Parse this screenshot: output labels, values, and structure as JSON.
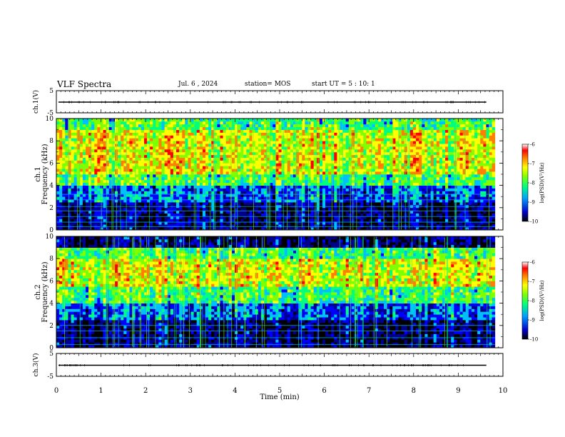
{
  "header": {
    "title": "VLF Spectra",
    "date": "Jul. 6 , 2024",
    "station": "station= MOS",
    "start": "start UT = 5 : 10: 1"
  },
  "chart_data": {
    "type": "heatmap",
    "title": "VLF Spectra",
    "xlabel": "Time (min)",
    "xlim": [
      0,
      10
    ],
    "x_ticks": [
      "0",
      "1",
      "2",
      "3",
      "4",
      "5",
      "6",
      "7",
      "8",
      "9",
      "10"
    ],
    "data_end_min": 9.82,
    "panels": [
      {
        "name": "ch1-waveform",
        "ylabel": "ch.1(V)",
        "type": "line",
        "ylim": [
          -5,
          5
        ],
        "y_ticks": [
          "5",
          "-5"
        ],
        "baseline_value": 0
      },
      {
        "name": "ch1-spectrogram",
        "ylabel": "ch.1 Frequency (kHz)",
        "type": "heatmap",
        "ylim": [
          0,
          10
        ],
        "y_ticks": [
          "0",
          "2",
          "4",
          "6",
          "8",
          "10"
        ],
        "colorbar": {
          "label": "log(PSD)(V²/Hz)",
          "range": [
            -10,
            -6
          ],
          "ticks": [
            "-6",
            "-7",
            "-8",
            "-9",
            "-10"
          ]
        },
        "dominant_band_khz": [
          4,
          10
        ],
        "peak_band_khz": [
          5,
          9
        ],
        "low_lines_khz": [
          0.3,
          0.7,
          1.2,
          1.7,
          2.1,
          2.7,
          3.2
        ]
      },
      {
        "name": "ch2-spectrogram",
        "ylabel": "ch.2 Frequency (kHz)",
        "type": "heatmap",
        "ylim": [
          0,
          10
        ],
        "y_ticks": [
          "0",
          "2",
          "4",
          "6",
          "8",
          "10"
        ],
        "colorbar": {
          "label": "log(PSD)(V²/Hz)",
          "range": [
            -10,
            -6
          ],
          "ticks": [
            "-6",
            "-7",
            "-8",
            "-9",
            "-10"
          ]
        },
        "dominant_band_khz": [
          4,
          9
        ],
        "peak_band_khz": [
          5.5,
          8
        ],
        "low_lines_khz": [
          0.3,
          0.9,
          1.5,
          2.0
        ]
      },
      {
        "name": "ch3-waveform",
        "ylabel": "ch.3(V)",
        "type": "line",
        "ylim": [
          -5,
          5
        ],
        "y_ticks": [
          "5",
          "-5"
        ],
        "baseline_value": 0
      }
    ]
  },
  "colors": {
    "axis": "#000000",
    "colormap": [
      "#000000",
      "#00008b",
      "#0000ff",
      "#00bfff",
      "#00ff80",
      "#7fff00",
      "#ffff00",
      "#ff8000",
      "#ff0000",
      "#ffffff"
    ]
  }
}
